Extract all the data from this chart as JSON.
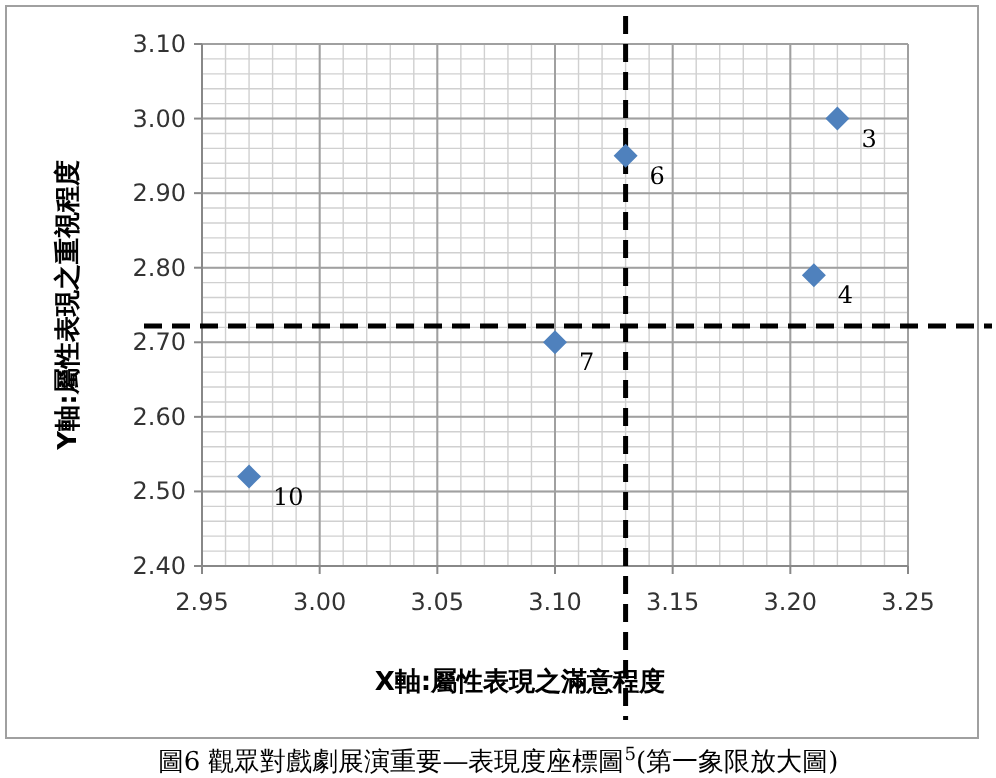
{
  "chart_data": {
    "type": "scatter",
    "xlabel": "X軸:屬性表現之滿意程度",
    "ylabel": "Y軸:屬性表現之重視程度",
    "annotations": [
      {
        "text": "6",
        "x": 3.13,
        "y": 2.95
      },
      {
        "text": "3",
        "x": 3.22,
        "y": 3.0
      },
      {
        "text": "4",
        "x": 3.21,
        "y": 2.79
      },
      {
        "text": "7",
        "x": 3.1,
        "y": 2.7
      },
      {
        "text": "10",
        "x": 2.97,
        "y": 2.52
      },
      "圖6 觀眾對戲劇展演重要—表現度座標圖$^{5}$(第一象限放大圖)"
    ],
    "x": [
      3.13,
      3.22,
      3.21,
      3.1,
      2.97
    ],
    "series": [
      {
        "color": "#4f81bd",
        "values": [
          2.95,
          3.0,
          2.79,
          2.7,
          2.52
        ]
      }
    ],
    "marker": "diamond",
    "xlim": [
      2.95,
      3.25
    ],
    "xticks": [
      {
        "value": 2.95,
        "label": "2.95"
      },
      {
        "value": 3.0,
        "label": "3.00"
      },
      {
        "value": 3.05,
        "label": "3.05"
      },
      {
        "value": 3.1,
        "label": "3.10"
      },
      {
        "value": 3.15,
        "label": "3.15"
      },
      {
        "value": 3.2,
        "label": "3.20"
      },
      {
        "value": 3.25,
        "label": "3.25"
      }
    ],
    "ylim": [
      2.4,
      3.1
    ],
    "yticks": [
      {
        "value": 2.4,
        "label": "2.40"
      },
      {
        "value": 2.5,
        "label": "2.50"
      },
      {
        "value": 2.6,
        "label": "2.60"
      },
      {
        "value": 2.7,
        "label": "2.70"
      },
      {
        "value": 2.8,
        "label": "2.80"
      },
      {
        "value": 2.9,
        "label": "2.90"
      },
      {
        "value": 3.0,
        "label": "3.00"
      },
      {
        "value": 3.1,
        "label": "3.10"
      }
    ],
    "grid": true,
    "ref_lines": [
      {
        "axis": "x",
        "value": 3.13,
        "line_style": "dashed",
        "color": "#000000"
      },
      {
        "axis": "y",
        "value": 2.722,
        "line_style": "dashed",
        "color": "#000000"
      }
    ]
  }
}
